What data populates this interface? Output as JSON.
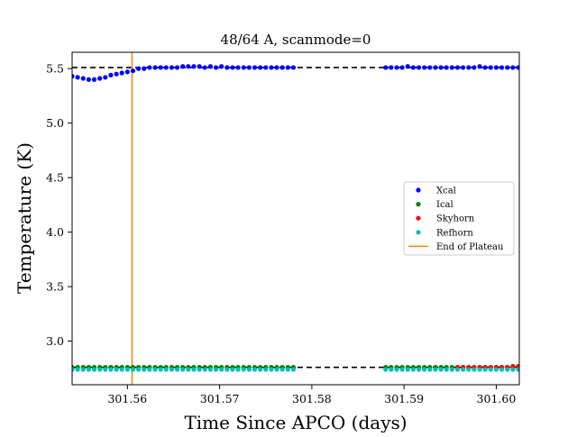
{
  "chart_data": {
    "type": "scatter",
    "title": "48/64 A, scanmode=0",
    "xlabel": "Time Since APCO (days)",
    "ylabel": "Temperature (K)",
    "xlim": [
      301.554,
      301.6025
    ],
    "ylim": [
      2.6,
      5.65
    ],
    "xticks": [
      301.56,
      301.57,
      301.58,
      301.59,
      301.6
    ],
    "xtick_labels": [
      "301.56",
      "301.57",
      "301.58",
      "301.59",
      "301.60"
    ],
    "yticks": [
      3.0,
      3.5,
      4.0,
      4.5,
      5.0,
      5.5
    ],
    "ytick_labels": [
      "3.0",
      "3.5",
      "4.0",
      "4.5",
      "5.0",
      "5.5"
    ],
    "grid": false,
    "legend_position": "center-right",
    "colors": {
      "xcal": "#0000ff",
      "ical": "#008000",
      "skyhorn": "#ff0000",
      "refhorn": "#00bfbf",
      "end_of_plateau": "#ff7f0e",
      "reference_line": "#000000"
    },
    "series": [
      {
        "name": "Xcal",
        "x": [
          301.554,
          301.5546,
          301.5552,
          301.5558,
          301.5564,
          301.557,
          301.5576,
          301.5582,
          301.5588,
          301.5594,
          301.56,
          301.5606,
          301.5612,
          301.5618,
          301.5624,
          301.563,
          301.5636,
          301.5642,
          301.5648,
          301.5654,
          301.566,
          301.5666,
          301.5672,
          301.5678,
          301.5684,
          301.569,
          301.5696,
          301.5702,
          301.5708,
          301.5714,
          301.572,
          301.5726,
          301.5732,
          301.5738,
          301.5744,
          301.575,
          301.5756,
          301.5762,
          301.5768,
          301.5774,
          301.578,
          301.588,
          301.5886,
          301.5892,
          301.5898,
          301.5904,
          301.591,
          301.5916,
          301.5922,
          301.5928,
          301.5934,
          301.594,
          301.5946,
          301.5952,
          301.5958,
          301.5964,
          301.597,
          301.5976,
          301.5982,
          301.5988,
          301.5994,
          301.6,
          301.6006,
          301.6012,
          301.6018,
          301.6024
        ],
        "y": [
          5.43,
          5.42,
          5.41,
          5.4,
          5.4,
          5.41,
          5.42,
          5.44,
          5.45,
          5.46,
          5.47,
          5.48,
          5.5,
          5.5,
          5.51,
          5.51,
          5.51,
          5.51,
          5.51,
          5.51,
          5.52,
          5.52,
          5.52,
          5.52,
          5.51,
          5.52,
          5.51,
          5.52,
          5.51,
          5.51,
          5.51,
          5.51,
          5.51,
          5.51,
          5.51,
          5.51,
          5.51,
          5.51,
          5.51,
          5.51,
          5.51,
          5.51,
          5.51,
          5.51,
          5.51,
          5.52,
          5.51,
          5.51,
          5.51,
          5.51,
          5.51,
          5.51,
          5.51,
          5.51,
          5.51,
          5.51,
          5.51,
          5.51,
          5.52,
          5.51,
          5.51,
          5.51,
          5.51,
          5.51,
          5.51,
          5.51
        ]
      },
      {
        "name": "Ical",
        "x": [
          301.554,
          301.5546,
          301.5552,
          301.5558,
          301.5564,
          301.557,
          301.5576,
          301.5582,
          301.5588,
          301.5594,
          301.56,
          301.5606,
          301.5612,
          301.5618,
          301.5624,
          301.563,
          301.5636,
          301.5642,
          301.5648,
          301.5654,
          301.566,
          301.5666,
          301.5672,
          301.5678,
          301.5684,
          301.569,
          301.5696,
          301.5702,
          301.5708,
          301.5714,
          301.572,
          301.5726,
          301.5732,
          301.5738,
          301.5744,
          301.575,
          301.5756,
          301.5762,
          301.5768,
          301.5774,
          301.578,
          301.588,
          301.5886,
          301.5892,
          301.5898,
          301.5904,
          301.591,
          301.5916,
          301.5922,
          301.5928,
          301.5934,
          301.594,
          301.5946,
          301.5952,
          301.5958,
          301.5964,
          301.597,
          301.5976,
          301.5982,
          301.5988,
          301.5994,
          301.6,
          301.6006,
          301.6012,
          301.6018,
          301.6024
        ],
        "y": [
          2.76,
          2.76,
          2.76,
          2.76,
          2.76,
          2.76,
          2.76,
          2.76,
          2.76,
          2.76,
          2.76,
          2.76,
          2.76,
          2.76,
          2.76,
          2.76,
          2.76,
          2.76,
          2.76,
          2.76,
          2.76,
          2.76,
          2.76,
          2.76,
          2.76,
          2.76,
          2.76,
          2.76,
          2.76,
          2.76,
          2.76,
          2.76,
          2.76,
          2.76,
          2.76,
          2.76,
          2.76,
          2.76,
          2.76,
          2.76,
          2.76,
          2.76,
          2.76,
          2.76,
          2.76,
          2.76,
          2.76,
          2.76,
          2.76,
          2.76,
          2.76,
          2.76,
          2.76,
          2.76,
          2.76,
          2.76,
          2.76,
          2.76,
          2.76,
          2.76,
          2.76,
          2.76,
          2.76,
          2.76,
          2.76,
          2.76
        ]
      },
      {
        "name": "Skyhorn",
        "x": [
          301.5958,
          301.5964,
          301.597,
          301.5976,
          301.5982,
          301.5988,
          301.5994,
          301.6,
          301.6006,
          301.6012,
          301.6018,
          301.6024
        ],
        "y": [
          2.76,
          2.76,
          2.76,
          2.76,
          2.76,
          2.76,
          2.76,
          2.76,
          2.76,
          2.76,
          2.77,
          2.77
        ]
      },
      {
        "name": "Refhorn",
        "x": [
          301.554,
          301.5546,
          301.5552,
          301.5558,
          301.5564,
          301.557,
          301.5576,
          301.5582,
          301.5588,
          301.5594,
          301.56,
          301.5606,
          301.5612,
          301.5618,
          301.5624,
          301.563,
          301.5636,
          301.5642,
          301.5648,
          301.5654,
          301.566,
          301.5666,
          301.5672,
          301.5678,
          301.5684,
          301.569,
          301.5696,
          301.5702,
          301.5708,
          301.5714,
          301.572,
          301.5726,
          301.5732,
          301.5738,
          301.5744,
          301.575,
          301.5756,
          301.5762,
          301.5768,
          301.5774,
          301.578,
          301.588,
          301.5886,
          301.5892,
          301.5898,
          301.5904,
          301.591,
          301.5916,
          301.5922,
          301.5928,
          301.5934,
          301.594,
          301.5946,
          301.5952,
          301.5958,
          301.5964,
          301.597,
          301.5976,
          301.5982,
          301.5988,
          301.5994,
          301.6,
          301.6006,
          301.6012,
          301.6018,
          301.6024
        ],
        "y": [
          2.74,
          2.74,
          2.74,
          2.74,
          2.74,
          2.74,
          2.74,
          2.74,
          2.74,
          2.74,
          2.74,
          2.74,
          2.74,
          2.74,
          2.74,
          2.74,
          2.74,
          2.74,
          2.74,
          2.74,
          2.74,
          2.74,
          2.74,
          2.74,
          2.74,
          2.74,
          2.74,
          2.74,
          2.74,
          2.74,
          2.74,
          2.74,
          2.74,
          2.74,
          2.74,
          2.74,
          2.74,
          2.74,
          2.74,
          2.74,
          2.74,
          2.74,
          2.74,
          2.74,
          2.74,
          2.74,
          2.74,
          2.74,
          2.74,
          2.74,
          2.74,
          2.74,
          2.74,
          2.74,
          2.74,
          2.74,
          2.74,
          2.74,
          2.74,
          2.74,
          2.74,
          2.74,
          2.74,
          2.74,
          2.74,
          2.74
        ]
      }
    ],
    "vertical_line": {
      "name": "End of Plateau",
      "x": 301.5605
    },
    "reference_lines": [
      {
        "y": 5.51,
        "style": "dashed"
      },
      {
        "y": 2.76,
        "style": "dashed"
      }
    ]
  }
}
